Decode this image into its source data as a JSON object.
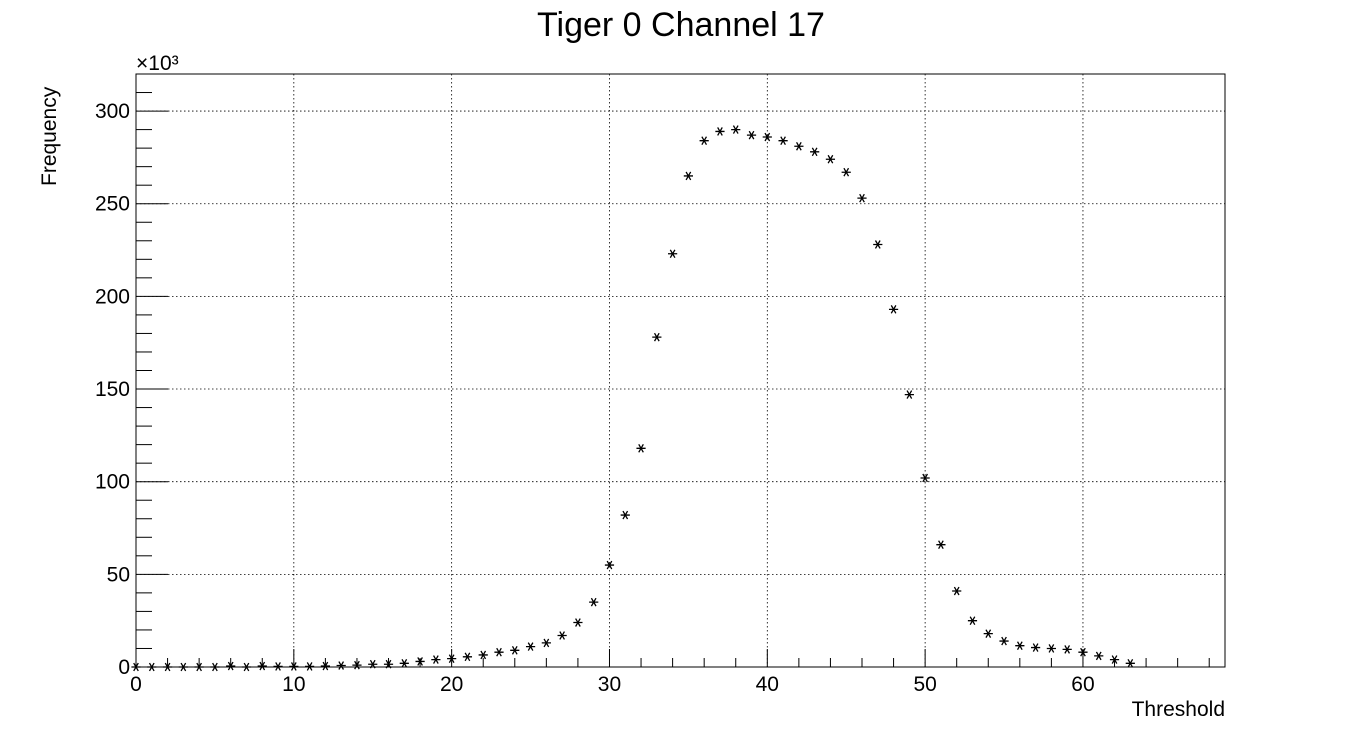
{
  "chart_data": {
    "type": "scatter",
    "title": "Tiger 0 Channel 17",
    "xlabel": "Threshold",
    "ylabel": "Frequency",
    "y_exponent_label": "×10³",
    "xlim": [
      0,
      69
    ],
    "ylim": [
      0,
      320
    ],
    "y_units_scale": 1000,
    "x_ticks": [
      "0",
      "10",
      "20",
      "30",
      "40",
      "50",
      "60"
    ],
    "y_ticks": [
      "0",
      "50",
      "100",
      "150",
      "200",
      "250",
      "300"
    ],
    "grid": true,
    "marker": "asterisk",
    "marker_color": "#000000",
    "series": [
      {
        "x": [
          0,
          1,
          2,
          3,
          4,
          5,
          6,
          7,
          8,
          9,
          10,
          11,
          12,
          13,
          14,
          15,
          16,
          17,
          18,
          19,
          20,
          21,
          22,
          23,
          24,
          25,
          26,
          27,
          28,
          29,
          30,
          31,
          32,
          33,
          34,
          35,
          36,
          37,
          38,
          39,
          40,
          41,
          42,
          43,
          44,
          45,
          46,
          47,
          48,
          49,
          50,
          51,
          52,
          53,
          54,
          55,
          56,
          57,
          58,
          59,
          60,
          61,
          62,
          63
        ],
        "y": [
          0,
          0,
          0,
          0,
          0,
          0,
          0.5,
          0,
          0.5,
          0.3,
          0.3,
          0.3,
          0.5,
          0.8,
          1,
          1.5,
          1.5,
          2,
          3,
          4,
          4.5,
          5.5,
          6.5,
          8,
          9,
          11,
          13,
          17,
          24,
          35,
          55,
          82,
          118,
          178,
          223,
          265,
          284,
          289,
          290,
          287,
          286,
          284,
          281,
          278,
          274,
          267,
          253,
          228,
          193,
          147,
          102,
          66,
          41,
          25,
          18,
          14,
          11.5,
          10.5,
          10,
          9.5,
          8,
          6,
          4,
          2
        ]
      }
    ]
  }
}
